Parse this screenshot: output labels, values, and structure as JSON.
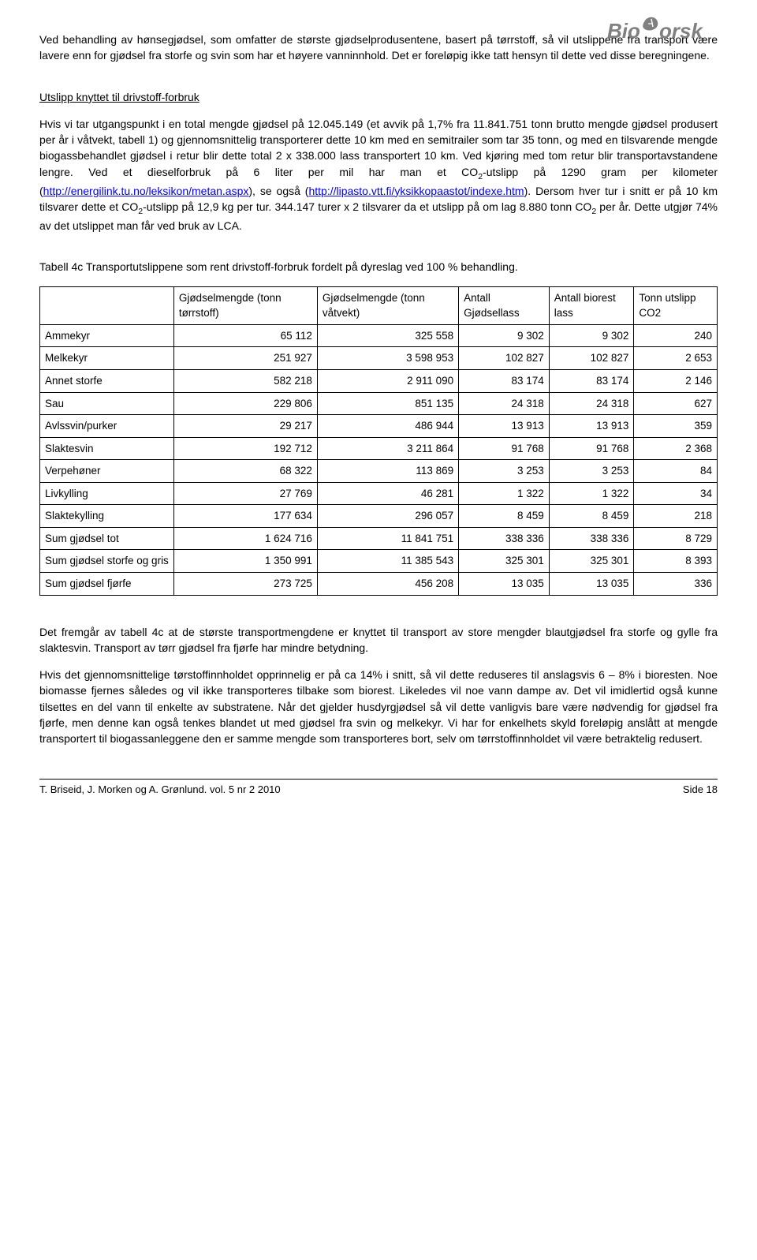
{
  "logo_text": "Bioforsk",
  "para1": "Ved behandling av hønsegjødsel, som omfatter de største gjødselprodusentene, basert på tørrstoff, så vil utslippene fra transport være lavere enn for gjødsel fra storfe og svin som har et høyere vanninnhold. Det er foreløpig ikke tatt hensyn til dette ved disse beregningene.",
  "subhead": "Utslipp knyttet til drivstoff-forbruk",
  "para2a": "Hvis vi tar utgangspunkt i en total mengde gjødsel på 12.045.149 (et avvik på 1,7% fra 11.841.751 tonn brutto mengde gjødsel produsert per år i våtvekt, tabell 1) og gjennomsnittelig transporterer dette 10 km med en semitrailer som tar 35 tonn, og med en tilsvarende mengde biogassbehandlet gjødsel i retur blir dette total 2 x 338.000 lass transportert 10 km. Ved kjøring med tom retur blir transportavstandene lengre. Ved et dieselforbruk på 6 liter per mil har man et CO",
  "para2a_sub": "2",
  "para2a_tail": "-utslipp på 1290 gram per kilometer (",
  "link1_text": "http://energilink.tu.no/leksikon/metan.aspx",
  "para2b": "), se også (",
  "link2_text": "http://lipasto.vtt.fi/yksikkopaastot/indexe.htm",
  "para2c": "). Dersom hver tur i snitt er på 10 km tilsvarer dette et CO",
  "para2c_sub": "2",
  "para2c_tail": "-utslipp på 12,9 kg per tur. 344.147 turer x 2 tilsvarer da et utslipp på om lag 8.880 tonn CO",
  "para2c_sub2": "2",
  "para2c_tail2": " per år. Dette utgjør 74% av det utslippet man får ved bruk av LCA.",
  "table_caption": "Tabell 4c  Transportutslippene som rent drivstoff-forbruk fordelt på dyreslag ved 100 % behandling.",
  "table": {
    "headers": [
      "",
      "Gjødselmengde (tonn tørrstoff)",
      "Gjødselmengde (tonn våtvekt)",
      "Antall Gjødsellass",
      "Antall biorest lass",
      "Tonn utslipp CO2"
    ],
    "rows": [
      {
        "label": "Ammekyr",
        "c1": "65 112",
        "c2": "325 558",
        "c3": "9 302",
        "c4": "9 302",
        "c5": "240"
      },
      {
        "label": "Melkekyr",
        "c1": "251 927",
        "c2": "3 598 953",
        "c3": "102 827",
        "c4": "102 827",
        "c5": "2 653"
      },
      {
        "label": "Annet storfe",
        "c1": "582 218",
        "c2": "2 911 090",
        "c3": "83 174",
        "c4": "83 174",
        "c5": "2 146"
      },
      {
        "label": "Sau",
        "c1": "229 806",
        "c2": "851 135",
        "c3": "24 318",
        "c4": "24 318",
        "c5": "627"
      },
      {
        "label": "Avlssvin/purker",
        "c1": "29 217",
        "c2": "486 944",
        "c3": "13 913",
        "c4": "13 913",
        "c5": "359"
      },
      {
        "label": "Slaktesvin",
        "c1": "192 712",
        "c2": "3 211 864",
        "c3": "91 768",
        "c4": "91 768",
        "c5": "2 368"
      },
      {
        "label": "Verpehøner",
        "c1": "68 322",
        "c2": "113 869",
        "c3": "3 253",
        "c4": "3 253",
        "c5": "84"
      },
      {
        "label": "Livkylling",
        "c1": "27 769",
        "c2": "46 281",
        "c3": "1 322",
        "c4": "1 322",
        "c5": "34"
      },
      {
        "label": "Slaktekylling",
        "c1": "177 634",
        "c2": "296 057",
        "c3": "8 459",
        "c4": "8 459",
        "c5": "218"
      },
      {
        "label": "Sum gjødsel tot",
        "c1": "1 624 716",
        "c2": "11 841 751",
        "c3": "338 336",
        "c4": "338 336",
        "c5": "8 729"
      },
      {
        "label": "Sum gjødsel storfe og gris",
        "c1": "1 350 991",
        "c2": "11 385 543",
        "c3": "325 301",
        "c4": "325 301",
        "c5": "8 393"
      },
      {
        "label": "Sum gjødsel fjørfe",
        "c1": "273 725",
        "c2": "456 208",
        "c3": "13 035",
        "c4": "13 035",
        "c5": "336"
      }
    ]
  },
  "para3": "Det fremgår av tabell 4c at de største transportmengdene er knyttet til transport av store mengder blautgjødsel fra storfe og gylle fra slaktesvin. Transport av tørr gjødsel fra fjørfe har mindre betydning.",
  "para4": "Hvis det gjennomsnittelige tørstoffinnholdet opprinnelig er på ca 14% i snitt, så vil dette reduseres til anslagsvis 6 – 8% i bioresten. Noe biomasse fjernes således og vil ikke transporteres tilbake som biorest. Likeledes vil noe vann dampe av. Det vil imidlertid også kunne tilsettes en del vann til enkelte av substratene. Når det gjelder husdyrgjødsel så vil dette vanligvis bare være nødvendig for gjødsel fra fjørfe, men denne kan også tenkes blandet ut med gjødsel fra svin og melkekyr. Vi har for enkelhets skyld foreløpig anslått at mengde transportert til biogassanleggene den er samme mengde som transporteres bort, selv om tørrstoffinnholdet vil være betraktelig redusert.",
  "footer_left": "T. Briseid, J. Morken og A. Grønlund.  vol. 5 nr 2  2010",
  "footer_right": "Side 18"
}
